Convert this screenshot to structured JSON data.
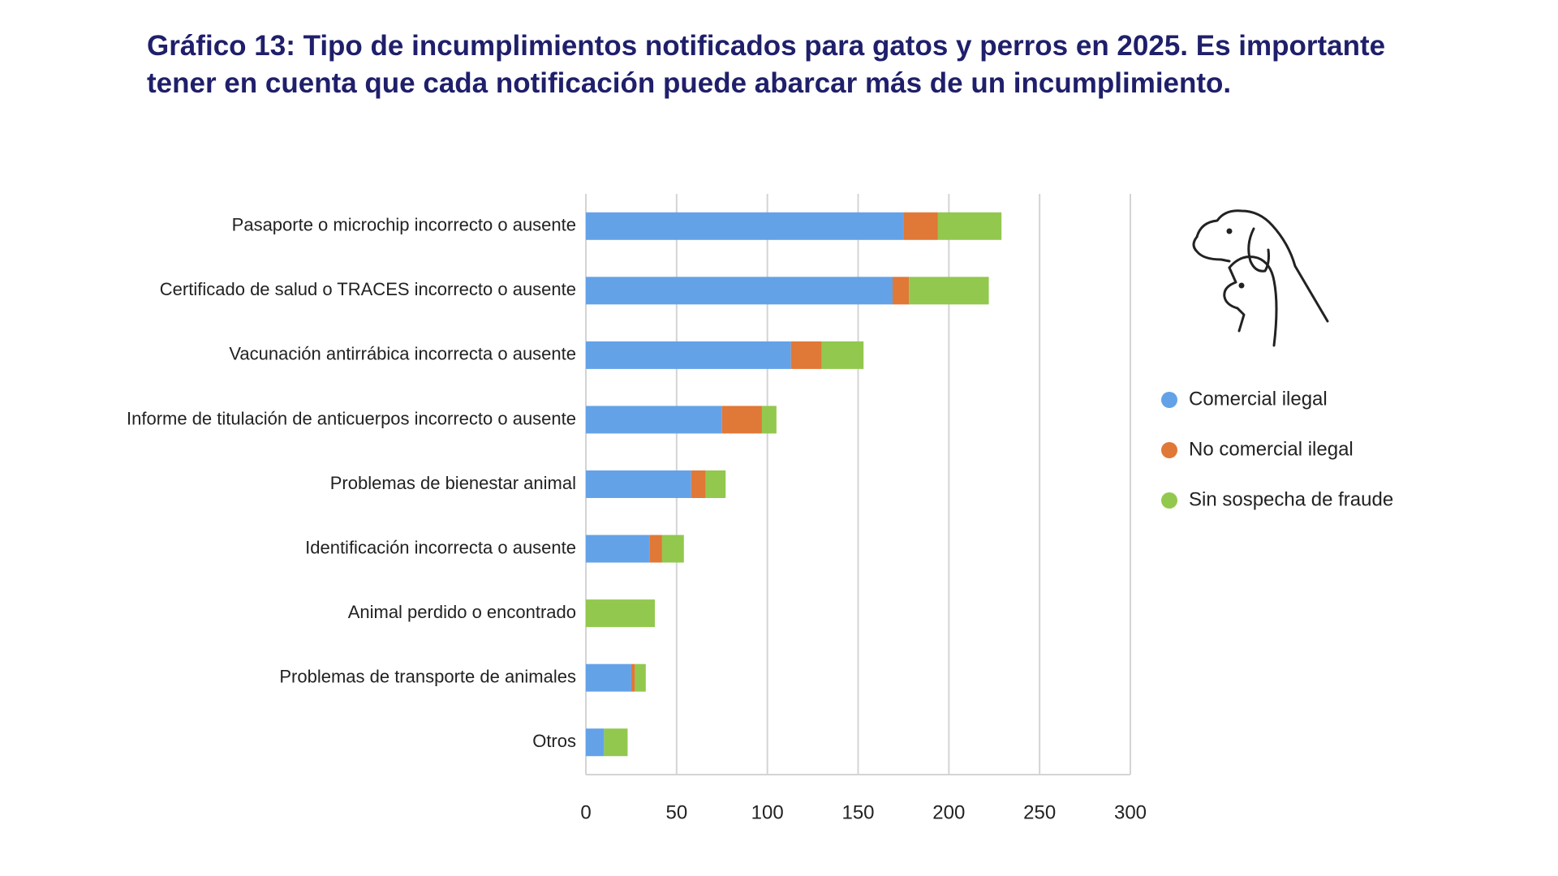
{
  "chart_data": {
    "type": "stacked-bar-horizontal",
    "title": "Gráfico 13: Tipo de incumplimientos notificados para gatos y perros en 2025. Es importante tener en cuenta que cada notificación puede abarcar más de un incumplimiento.",
    "categories": [
      "Pasaporte o microchip incorrecto o ausente",
      "Certificado de salud o TRACES incorrecto o ausente",
      "Vacunación antirrábica incorrecta o ausente",
      "Informe de titulación de anticuerpos incorrecto o ausente",
      "Problemas de bienestar animal",
      "Identificación incorrecta o ausente",
      "Animal perdido o encontrado",
      "Problemas de transporte de animales",
      "Otros"
    ],
    "series": [
      {
        "name": "Comercial ilegal",
        "color": "#64a2e8",
        "values": [
          175,
          169,
          113,
          75,
          58,
          35,
          0,
          25,
          10
        ]
      },
      {
        "name": "No comercial ilegal",
        "color": "#e07838",
        "values": [
          19,
          9,
          17,
          22,
          8,
          7,
          0,
          2,
          0
        ]
      },
      {
        "name": "Sin sospecha de fraude",
        "color": "#92c84e",
        "values": [
          35,
          44,
          23,
          8,
          11,
          12,
          38,
          6,
          13
        ]
      }
    ],
    "xlim": [
      0,
      300
    ],
    "xticks": [
      0,
      50,
      100,
      150,
      200,
      250,
      300
    ],
    "grid": true
  }
}
